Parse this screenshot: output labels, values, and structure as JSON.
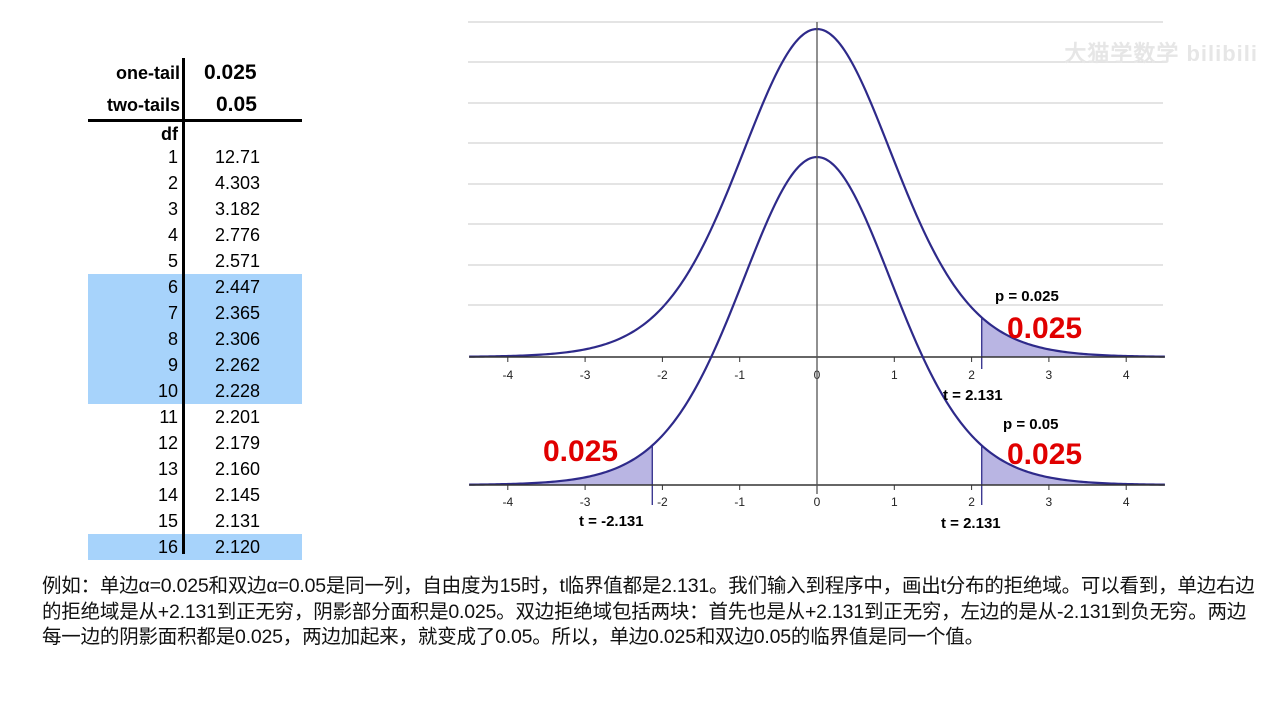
{
  "table": {
    "one_tail_label": "one-tail",
    "one_tail_value": "0.025",
    "two_tails_label": "two-tails",
    "two_tails_value": "0.05",
    "df_header": "df",
    "rows": [
      {
        "df": "1",
        "value": "12.71",
        "highlight": false
      },
      {
        "df": "2",
        "value": "4.303",
        "highlight": false
      },
      {
        "df": "3",
        "value": "3.182",
        "highlight": false
      },
      {
        "df": "4",
        "value": "2.776",
        "highlight": false
      },
      {
        "df": "5",
        "value": "2.571",
        "highlight": false
      },
      {
        "df": "6",
        "value": "2.447",
        "highlight": true
      },
      {
        "df": "7",
        "value": "2.365",
        "highlight": true
      },
      {
        "df": "8",
        "value": "2.306",
        "highlight": true
      },
      {
        "df": "9",
        "value": "2.262",
        "highlight": true
      },
      {
        "df": "10",
        "value": "2.228",
        "highlight": true
      },
      {
        "df": "11",
        "value": "2.201",
        "highlight": false
      },
      {
        "df": "12",
        "value": "2.179",
        "highlight": false
      },
      {
        "df": "13",
        "value": "2.160",
        "highlight": false
      },
      {
        "df": "14",
        "value": "2.145",
        "highlight": false
      },
      {
        "df": "15",
        "value": "2.131",
        "highlight": false
      },
      {
        "df": "16",
        "value": "2.120",
        "highlight": true
      }
    ],
    "highlight_color": "#a7d3fb"
  },
  "chart_data": [
    {
      "type": "area",
      "distribution": "t",
      "df": 15,
      "xlim": [
        -4.5,
        4.5
      ],
      "xticks": [
        "-4",
        "-3",
        "-2",
        "-1",
        "0",
        "1",
        "2",
        "3",
        "4"
      ],
      "grid": true,
      "curve_color": "#2e2a8a",
      "shade_color": "#b9b5e3",
      "shaded_regions": [
        {
          "from": 2.131,
          "to": 4.5,
          "area_label": "0.025"
        }
      ],
      "annotations": {
        "p_label": "p = 0.025",
        "t_label": "t = 2.131"
      }
    },
    {
      "type": "area",
      "distribution": "t",
      "df": 15,
      "xlim": [
        -4.5,
        4.5
      ],
      "xticks": [
        "-4",
        "-3",
        "-2",
        "-1",
        "0",
        "1",
        "2",
        "3",
        "4"
      ],
      "grid": false,
      "curve_color": "#2e2a8a",
      "shade_color": "#b9b5e3",
      "shaded_regions": [
        {
          "from": -4.5,
          "to": -2.131,
          "area_label": "0.025"
        },
        {
          "from": 2.131,
          "to": 4.5,
          "area_label": "0.025"
        }
      ],
      "annotations": {
        "p_label": "p = 0.05",
        "t_left_label": "t = -2.131",
        "t_right_label": "t = 2.131"
      }
    }
  ],
  "area_label_color": "#e00000",
  "explanation": "例如：单边α=0.025和双边α=0.05是同一列，自由度为15时，t临界值都是2.131。我们输入到程序中，画出t分布的拒绝域。可以看到，单边右边的拒绝域是从+2.131到正无穷，阴影部分面积是0.025。双边拒绝域包括两块：首先也是从+2.131到正无穷，左边的是从-2.131到负无穷。两边每一边的阴影面积都是0.025，两边加起来，就变成了0.05。所以，单边0.025和双边0.05的临界值是同一个值。",
  "watermark": "大猫学数学 bilibili"
}
